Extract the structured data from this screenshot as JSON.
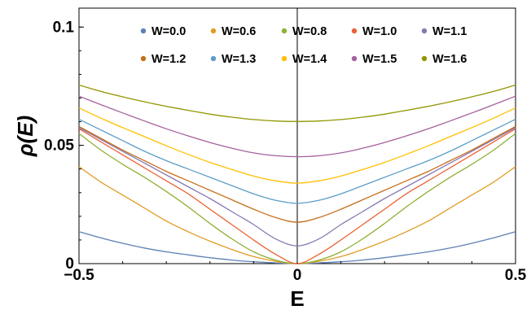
{
  "chart_data": {
    "type": "line",
    "xlabel": "E",
    "ylabel": "ρ(E)",
    "xlim": [
      -0.5,
      0.5
    ],
    "ylim": [
      0,
      0.108
    ],
    "x_ticks": [
      {
        "value": -0.5,
        "label": "−0.5"
      },
      {
        "value": 0,
        "label": "0"
      },
      {
        "value": 0.5,
        "label": "0.5"
      }
    ],
    "y_ticks": [
      {
        "value": 0,
        "label": "0"
      },
      {
        "value": 0.05,
        "label": "0.05"
      },
      {
        "value": 0.1,
        "label": "0.1"
      }
    ],
    "grid": false,
    "legend_position": "top",
    "x": [
      0,
      0.05,
      0.1,
      0.15,
      0.2,
      0.25,
      0.3,
      0.35,
      0.4,
      0.45,
      0.5
    ],
    "symmetric_about_zero": true,
    "series": [
      {
        "name": "W=0.0",
        "color": "#5e81b5",
        "values": [
          0,
          0.0003,
          0.0008,
          0.0015,
          0.0025,
          0.0037,
          0.005,
          0.0066,
          0.0086,
          0.0109,
          0.0135
        ]
      },
      {
        "name": "W=0.6",
        "color": "#e19c24",
        "values": [
          0,
          0.001,
          0.003,
          0.006,
          0.0095,
          0.0135,
          0.018,
          0.0235,
          0.029,
          0.0345,
          0.041
        ]
      },
      {
        "name": "W=0.8",
        "color": "#8fb032",
        "values": [
          0,
          0.0015,
          0.005,
          0.0105,
          0.017,
          0.024,
          0.0305,
          0.0365,
          0.042,
          0.048,
          0.055
        ]
      },
      {
        "name": "W=1.0",
        "color": "#eb6235",
        "values": [
          0,
          0.004,
          0.01,
          0.0165,
          0.023,
          0.0295,
          0.035,
          0.0405,
          0.046,
          0.0515,
          0.057
        ]
      },
      {
        "name": "W=1.1",
        "color": "#8778b3",
        "values": [
          0.0075,
          0.0105,
          0.0165,
          0.022,
          0.0275,
          0.0325,
          0.0375,
          0.0425,
          0.0475,
          0.0525,
          0.0575
        ]
      },
      {
        "name": "W=1.2",
        "color": "#c56e1a",
        "values": [
          0.0175,
          0.0195,
          0.023,
          0.027,
          0.031,
          0.035,
          0.039,
          0.0435,
          0.048,
          0.053,
          0.058
        ]
      },
      {
        "name": "W=1.3",
        "color": "#5d9ec7",
        "values": [
          0.0255,
          0.0268,
          0.0295,
          0.033,
          0.0365,
          0.04,
          0.0435,
          0.0475,
          0.052,
          0.0565,
          0.061
        ]
      },
      {
        "name": "W=1.4",
        "color": "#ffbf00",
        "values": [
          0.034,
          0.035,
          0.037,
          0.0398,
          0.0428,
          0.0462,
          0.0498,
          0.0537,
          0.0575,
          0.0615,
          0.0658
        ]
      },
      {
        "name": "W=1.5",
        "color": "#a5609d",
        "values": [
          0.0452,
          0.0456,
          0.0468,
          0.0488,
          0.0512,
          0.054,
          0.057,
          0.0603,
          0.0637,
          0.0672,
          0.0708
        ]
      },
      {
        "name": "W=1.6",
        "color": "#929600",
        "values": [
          0.0601,
          0.0603,
          0.0609,
          0.0619,
          0.0632,
          0.0648,
          0.0665,
          0.0684,
          0.0705,
          0.0728,
          0.0755
        ]
      }
    ]
  }
}
